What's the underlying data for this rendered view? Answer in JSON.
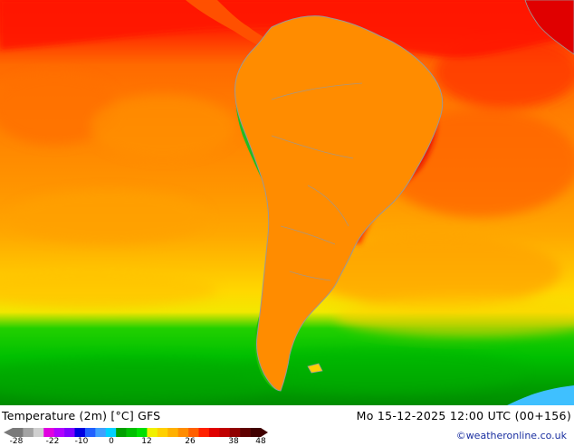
{
  "map": {
    "title": "Temperature (2m) [°C] GFS",
    "datetime": "Mo 15-12-2025 12:00 UTC (00+156)",
    "credit": "©weatheronline.co.uk",
    "colors": {
      "ocean_north": "#ff1a00",
      "ocean_mid": "#ff7a00",
      "ocean_south_warm": "#ffaa00",
      "ocean_south_cool": "#ffd000",
      "subpolar_green": "#00cc00",
      "polar_green": "#00a000",
      "continent": "#ff8c00",
      "interior_hot": "#e00000",
      "andes_green": "#22bb22",
      "andes_yellow": "#f5e000",
      "coastline": "#999999"
    },
    "legend": {
      "ticks": [
        "-28",
        "-22",
        "-10",
        "0",
        "12",
        "26",
        "38",
        "48"
      ],
      "colors": [
        "#7a7a7a",
        "#a3a3a3",
        "#cfcfcf",
        "#e000e0",
        "#b000ff",
        "#8000ff",
        "#0000e0",
        "#2060ff",
        "#3fa0ff",
        "#00d0ff",
        "#00a000",
        "#00c000",
        "#00e000",
        "#f0f000",
        "#ffd000",
        "#ffb000",
        "#ff8c00",
        "#ff6000",
        "#ff2000",
        "#e00000",
        "#c00000",
        "#900000",
        "#600000",
        "#400000"
      ]
    }
  }
}
